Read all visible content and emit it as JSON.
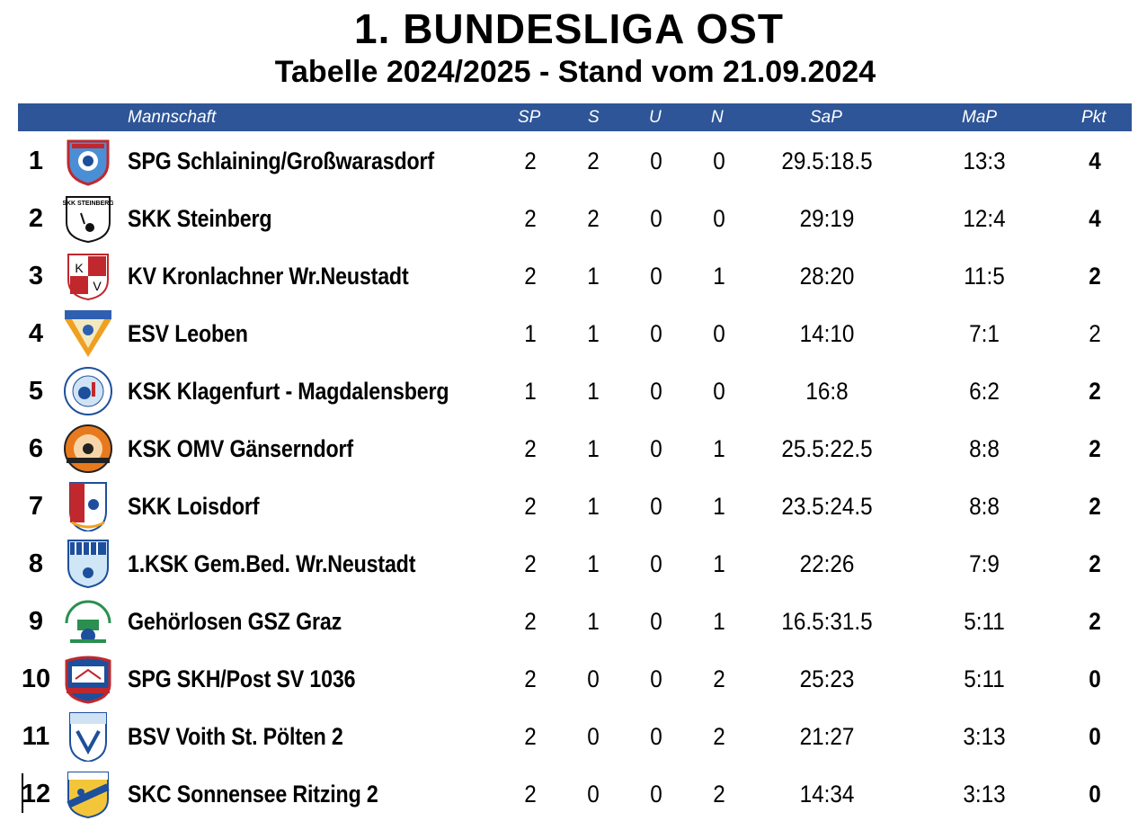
{
  "title": "1. BUNDESLIGA OST",
  "subtitle": "Tabelle 2024/2025 - Stand vom 21.09.2024",
  "header": {
    "mannschaft": "Mannschaft",
    "sp": "SP",
    "s": "S",
    "u": "U",
    "n": "N",
    "sap": "SaP",
    "map": "MaP",
    "pkt": "Pkt"
  },
  "colors": {
    "header_bg": "#2e5597"
  },
  "rows": [
    {
      "rank": "1",
      "team": "SPG Schlaining/Großwarasdorf",
      "sp": "2",
      "s": "2",
      "u": "0",
      "n": "0",
      "sap": "29.5:18.5",
      "map": "13:3",
      "pkt": "4",
      "logo": "spg-schlaining-logo"
    },
    {
      "rank": "2",
      "team": "SKK Steinberg",
      "sp": "2",
      "s": "2",
      "u": "0",
      "n": "0",
      "sap": "29:19",
      "map": "12:4",
      "pkt": "4",
      "logo": "skk-steinberg-logo"
    },
    {
      "rank": "3",
      "team": "KV Kronlachner Wr.Neustadt",
      "sp": "2",
      "s": "1",
      "u": "0",
      "n": "1",
      "sap": "28:20",
      "map": "11:5",
      "pkt": "2",
      "logo": "kv-kronlachner-logo"
    },
    {
      "rank": "4",
      "team": "ESV Leoben",
      "sp": "1",
      "s": "1",
      "u": "0",
      "n": "0",
      "sap": "14:10",
      "map": "7:1",
      "pkt": "2",
      "logo": "esv-leoben-logo"
    },
    {
      "rank": "5",
      "team": "KSK Klagenfurt - Magdalensberg",
      "sp": "1",
      "s": "1",
      "u": "0",
      "n": "0",
      "sap": "16:8",
      "map": "6:2",
      "pkt": "2",
      "logo": "ksk-klagenfurt-logo"
    },
    {
      "rank": "6",
      "team": "KSK OMV Gänserndorf",
      "sp": "2",
      "s": "1",
      "u": "0",
      "n": "1",
      "sap": "25.5:22.5",
      "map": "8:8",
      "pkt": "2",
      "logo": "ksk-omv-logo"
    },
    {
      "rank": "7",
      "team": "SKK Loisdorf",
      "sp": "2",
      "s": "1",
      "u": "0",
      "n": "1",
      "sap": "23.5:24.5",
      "map": "8:8",
      "pkt": "2",
      "logo": "skk-loisdorf-logo"
    },
    {
      "rank": "8",
      "team": "1.KSK Gem.Bed. Wr.Neustadt",
      "sp": "2",
      "s": "1",
      "u": "0",
      "n": "1",
      "sap": "22:26",
      "map": "7:9",
      "pkt": "2",
      "logo": "ksk-gembed-logo"
    },
    {
      "rank": "9",
      "team": "Gehörlosen GSZ Graz",
      "sp": "2",
      "s": "1",
      "u": "0",
      "n": "1",
      "sap": "16.5:31.5",
      "map": "5:11",
      "pkt": "2",
      "logo": "gsz-graz-logo"
    },
    {
      "rank": "10",
      "team": "SPG SKH/Post SV 1036",
      "sp": "2",
      "s": "0",
      "u": "0",
      "n": "2",
      "sap": "25:23",
      "map": "5:11",
      "pkt": "0",
      "logo": "spg-skh-post-logo"
    },
    {
      "rank": "11",
      "team": "BSV Voith St. Pölten 2",
      "sp": "2",
      "s": "0",
      "u": "0",
      "n": "2",
      "sap": "21:27",
      "map": "3:13",
      "pkt": "0",
      "logo": "bsv-voith-logo"
    },
    {
      "rank": "12",
      "team": "SKC Sonnensee Ritzing 2",
      "sp": "2",
      "s": "0",
      "u": "0",
      "n": "2",
      "sap": "14:34",
      "map": "3:13",
      "pkt": "0",
      "logo": "skc-ritzing-logo"
    }
  ]
}
